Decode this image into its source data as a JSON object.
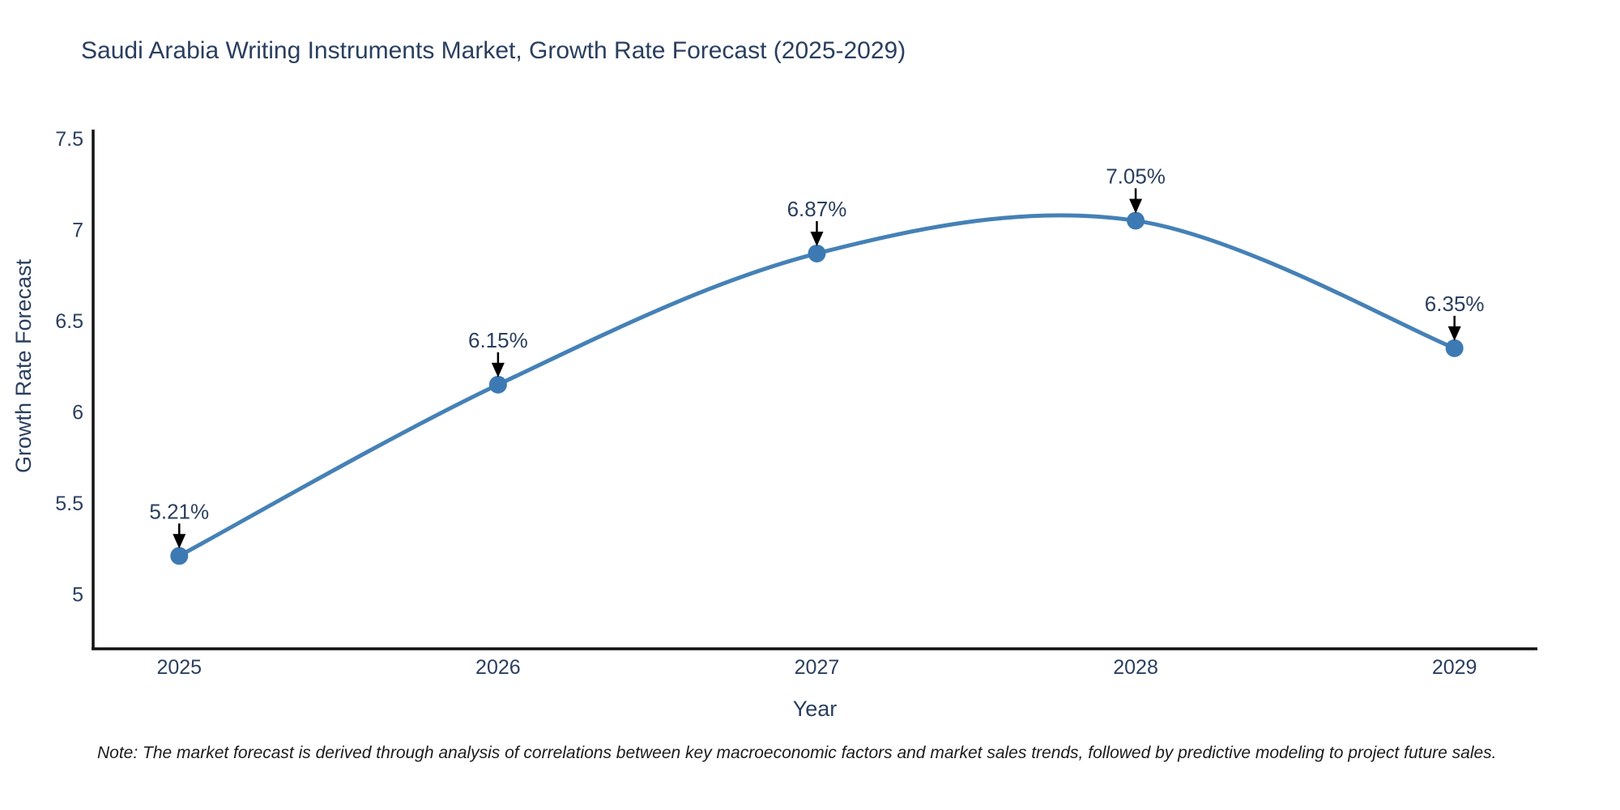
{
  "title": "Saudi Arabia Writing Instruments Market, Growth Rate Forecast (2025-2029)",
  "note": "Note: The market forecast is derived through analysis of correlations between key macroeconomic factors and market sales trends, followed by predictive modeling to project future sales.",
  "chart_data": {
    "type": "line",
    "title": "Saudi Arabia Writing Instruments Market, Growth Rate Forecast (2025-2029)",
    "xlabel": "Year",
    "ylabel": "Growth Rate Forecast",
    "categories": [
      2025,
      2026,
      2027,
      2028,
      2029
    ],
    "series": [
      {
        "name": "Growth Rate Forecast",
        "values": [
          5.21,
          6.15,
          6.87,
          7.05,
          6.35
        ],
        "point_labels": [
          "5.21%",
          "6.15%",
          "6.87%",
          "7.05%",
          "6.35%"
        ]
      }
    ],
    "yticks": [
      5,
      5.5,
      6,
      6.5,
      7,
      7.5
    ],
    "xlim": [
      2024.73,
      2029.26
    ],
    "ylim": [
      4.7,
      7.55
    ],
    "line_shape": "spline",
    "grid": false,
    "legend": "none",
    "colors": {
      "line": "#4581b6",
      "marker": "#3d7ab3",
      "axis_line": "#111111",
      "text": "#2a3f5f",
      "annotation_arrow": "#000000",
      "background": "#ffffff"
    }
  }
}
